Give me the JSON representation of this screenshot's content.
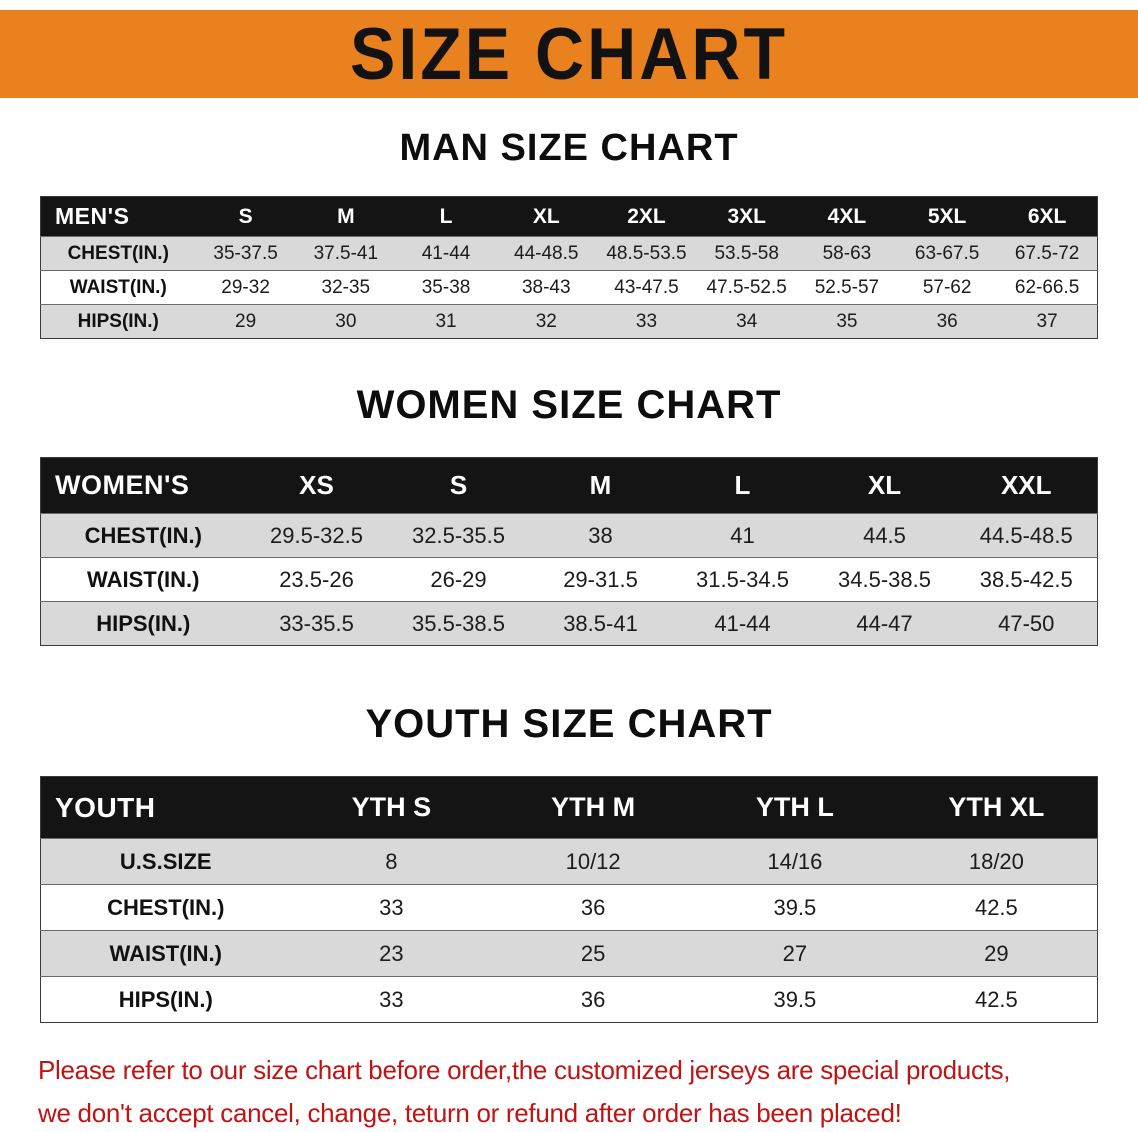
{
  "banner": {
    "title": "SIZE CHART"
  },
  "sections": [
    {
      "heading": "MAN SIZE CHART",
      "table": {
        "header": [
          "MEN'S",
          "S",
          "M",
          "L",
          "XL",
          "2XL",
          "3XL",
          "4XL",
          "5XL",
          "6XL"
        ],
        "rows": [
          {
            "label": "CHEST(IN.)",
            "values": [
              "35-37.5",
              "37.5-41",
              "41-44",
              "44-48.5",
              "48.5-53.5",
              "53.5-58",
              "58-63",
              "63-67.5",
              "67.5-72"
            ]
          },
          {
            "label": "WAIST(IN.)",
            "values": [
              "29-32",
              "32-35",
              "35-38",
              "38-43",
              "43-47.5",
              "47.5-52.5",
              "52.5-57",
              "57-62",
              "62-66.5"
            ]
          },
          {
            "label": "HIPS(IN.)",
            "values": [
              "29",
              "30",
              "31",
              "32",
              "33",
              "34",
              "35",
              "36",
              "37"
            ]
          }
        ]
      }
    },
    {
      "heading": "WOMEN SIZE CHART",
      "table": {
        "header": [
          "WOMEN'S",
          "XS",
          "S",
          "M",
          "L",
          "XL",
          "XXL"
        ],
        "rows": [
          {
            "label": "CHEST(IN.)",
            "values": [
              "29.5-32.5",
              "32.5-35.5",
              "38",
              "41",
              "44.5",
              "44.5-48.5"
            ]
          },
          {
            "label": "WAIST(IN.)",
            "values": [
              "23.5-26",
              "26-29",
              "29-31.5",
              "31.5-34.5",
              "34.5-38.5",
              "38.5-42.5"
            ]
          },
          {
            "label": "HIPS(IN.)",
            "values": [
              "33-35.5",
              "35.5-38.5",
              "38.5-41",
              "41-44",
              "44-47",
              "47-50"
            ]
          }
        ]
      }
    },
    {
      "heading": "YOUTH SIZE CHART",
      "table": {
        "header": [
          "YOUTH",
          "YTH S",
          "YTH M",
          "YTH L",
          "YTH XL"
        ],
        "rows": [
          {
            "label": "U.S.SIZE",
            "values": [
              "8",
              "10/12",
              "14/16",
              "18/20"
            ]
          },
          {
            "label": "CHEST(IN.)",
            "values": [
              "33",
              "36",
              "39.5",
              "42.5"
            ]
          },
          {
            "label": "WAIST(IN.)",
            "values": [
              "23",
              "25",
              "27",
              "29"
            ]
          },
          {
            "label": "HIPS(IN.)",
            "values": [
              "33",
              "36",
              "39.5",
              "42.5"
            ]
          }
        ]
      }
    }
  ],
  "footer": {
    "line1": "Please refer to our size chart before order,the customized jerseys are special products,",
    "line2": "we don't accept cancel, change, teturn or refund after order has been placed!"
  },
  "colors": {
    "banner_orange": "#E8811E",
    "header_black": "#141414",
    "row_gray": "#d9d9d9",
    "disclaimer_red": "#C01414"
  }
}
